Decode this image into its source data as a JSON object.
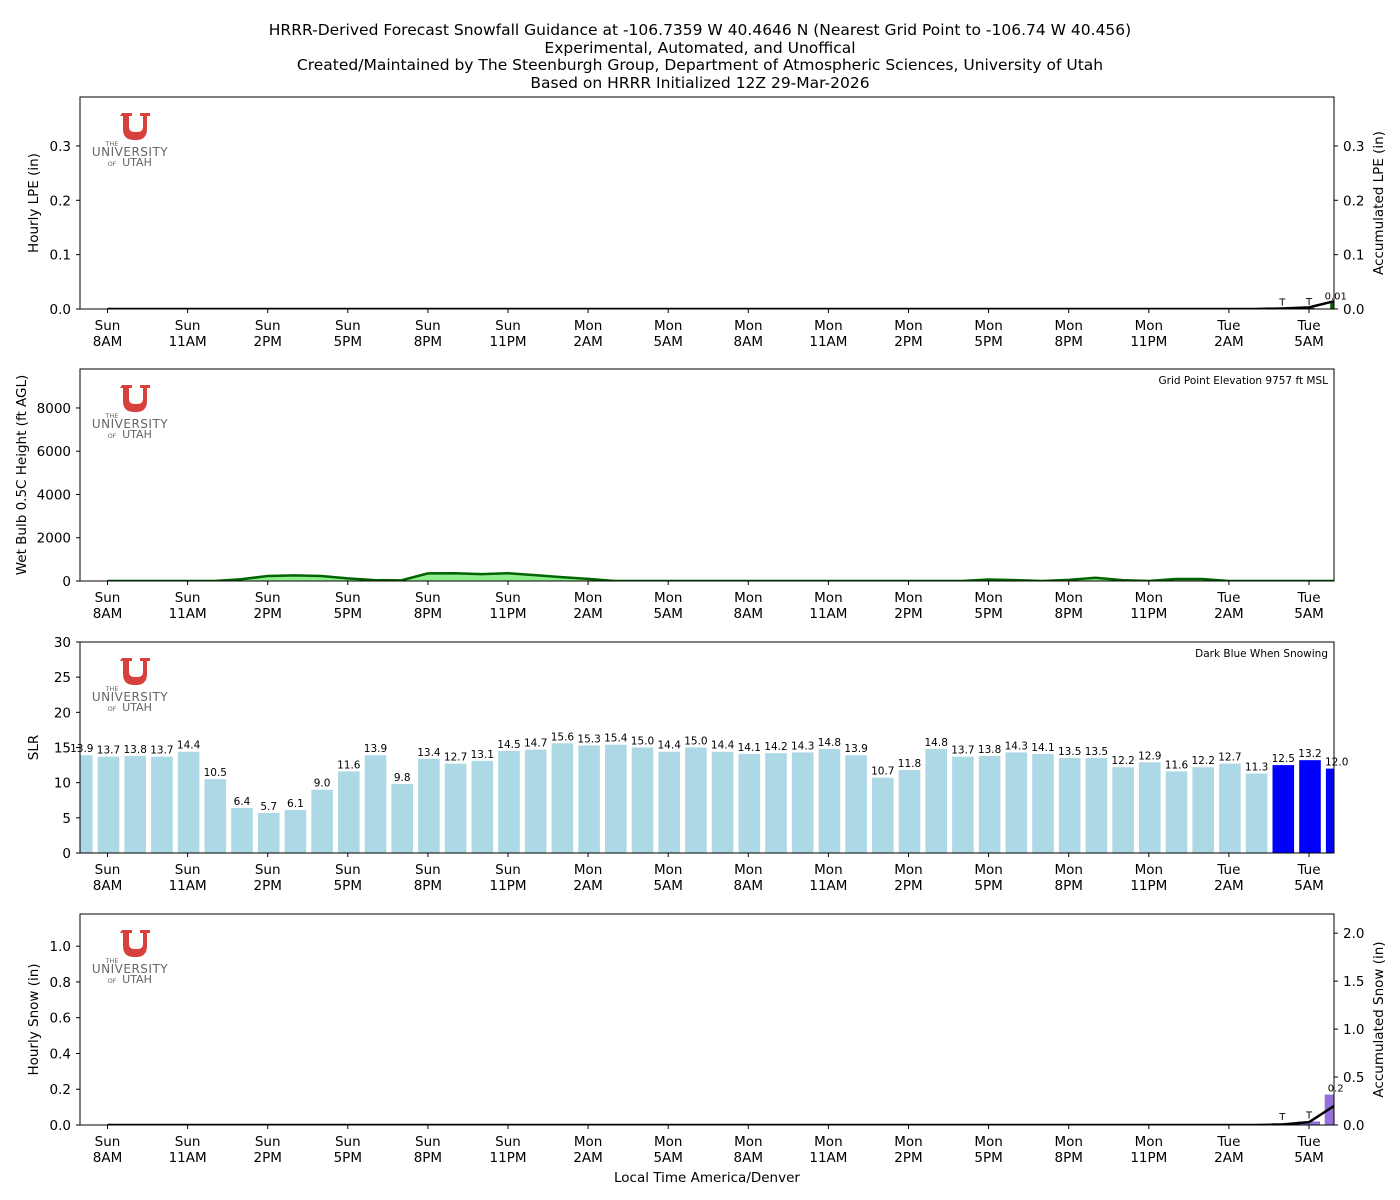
{
  "titles": {
    "line1": "HRRR-Derived Forecast Snowfall Guidance at -106.7359 W 40.4646 N (Nearest Grid Point to -106.74 W 40.456)",
    "line2": "Experimental, Automated, and Unoffical",
    "line3": "Created/Maintained by The Steenburgh Group, Department of Atmospheric Sciences, University of Utah",
    "line4": "Based on HRRR Initialized 12Z 29-Mar-2026"
  },
  "logo": {
    "the": "THE",
    "university": "UNIVERSITY",
    "of": "OF",
    "utah": "UTAH"
  },
  "colors": {
    "utah_red": "#d6403d",
    "slr_light": "#add8e6",
    "slr_snow": "#0000ff",
    "lpe_bar": "#006400",
    "wb_fill": "#90ee90",
    "wb_line": "#006400",
    "snow_bar": "#9370db"
  },
  "x_tick_labels": [
    [
      "Sun",
      "8AM"
    ],
    [
      "Sun",
      "11AM"
    ],
    [
      "Sun",
      "2PM"
    ],
    [
      "Sun",
      "5PM"
    ],
    [
      "Sun",
      "8PM"
    ],
    [
      "Sun",
      "11PM"
    ],
    [
      "Mon",
      "2AM"
    ],
    [
      "Mon",
      "5AM"
    ],
    [
      "Mon",
      "8AM"
    ],
    [
      "Mon",
      "11AM"
    ],
    [
      "Mon",
      "2PM"
    ],
    [
      "Mon",
      "5PM"
    ],
    [
      "Mon",
      "8PM"
    ],
    [
      "Mon",
      "11PM"
    ],
    [
      "Tue",
      "2AM"
    ],
    [
      "Tue",
      "5AM"
    ]
  ],
  "xlabel": "Local Time America/Denver",
  "chart_data": [
    {
      "type": "bar",
      "name": "lpe",
      "ylabel_left": "Hourly LPE (in)",
      "ylabel_right": "Accumulated LPE (in)",
      "ylim": [
        0,
        0.39
      ],
      "yticks": [
        "0.0",
        "0.1",
        "0.2",
        "0.3"
      ],
      "accumulated_ylim": [
        0,
        0.39
      ],
      "accumulated_yticks": [
        "0.0",
        "0.1",
        "0.2",
        "0.3"
      ],
      "hourly_values": [
        0,
        0,
        0,
        0,
        0,
        0,
        0,
        0,
        0,
        0,
        0,
        0,
        0,
        0,
        0,
        0,
        0,
        0,
        0,
        0,
        0,
        0,
        0,
        0,
        0,
        0,
        0,
        0,
        0,
        0,
        0,
        0,
        0,
        0,
        0,
        0,
        0,
        0,
        0,
        0,
        0,
        0,
        0,
        0,
        0.001,
        0.002,
        0.012
      ],
      "accumulated_values": [
        0,
        0,
        0,
        0,
        0,
        0,
        0,
        0,
        0,
        0,
        0,
        0,
        0,
        0,
        0,
        0,
        0,
        0,
        0,
        0,
        0,
        0,
        0,
        0,
        0,
        0,
        0,
        0,
        0,
        0,
        0,
        0,
        0,
        0,
        0,
        0,
        0,
        0,
        0,
        0,
        0,
        0,
        0,
        0,
        0.001,
        0.003,
        0.015
      ],
      "annotations": [
        {
          "index": 44,
          "label": "T"
        },
        {
          "index": 45,
          "label": "T"
        },
        {
          "index": 46,
          "label": "0.01"
        }
      ]
    },
    {
      "type": "area",
      "name": "wetbulb",
      "ylabel": "Wet Bulb 0.5C Height (ft AGL)",
      "ylim": [
        0,
        9800
      ],
      "yticks": [
        "0",
        "2000",
        "4000",
        "6000",
        "8000"
      ],
      "note": "Grid Point Elevation 9757 ft MSL",
      "values": [
        0,
        0,
        0,
        0,
        0,
        80,
        230,
        260,
        230,
        120,
        40,
        30,
        350,
        360,
        320,
        360,
        270,
        180,
        100,
        0,
        0,
        0,
        0,
        0,
        0,
        0,
        0,
        0,
        0,
        0,
        0,
        0,
        0,
        70,
        40,
        0,
        50,
        150,
        40,
        0,
        90,
        90,
        0,
        0,
        0,
        0,
        0,
        0,
        0,
        0,
        0
      ]
    },
    {
      "type": "bar",
      "name": "slr",
      "ylabel": "SLR",
      "ylim": [
        0,
        30
      ],
      "yticks": [
        "0",
        "5",
        "10",
        "15",
        "20",
        "25",
        "30"
      ],
      "note": "Dark Blue When Snowing",
      "values": [
        13.9,
        13.7,
        13.8,
        13.7,
        14.4,
        10.5,
        6.4,
        5.7,
        6.1,
        9.0,
        11.6,
        13.9,
        9.8,
        13.4,
        12.7,
        13.1,
        14.5,
        14.7,
        15.6,
        15.3,
        15.4,
        15.0,
        14.4,
        15.0,
        14.4,
        14.1,
        14.2,
        14.3,
        14.8,
        13.9,
        10.7,
        11.8,
        14.8,
        13.7,
        13.8,
        14.3,
        14.1,
        13.5,
        13.5,
        12.2,
        12.9,
        11.6,
        12.2,
        12.7,
        11.3,
        12.5,
        13.2,
        12.0
      ],
      "labels": [
        "13.9",
        "13.7",
        "13.8",
        "13.7",
        "14.4",
        "10.5",
        "6.4",
        "5.7",
        "6.1",
        "9.0",
        "11.6",
        "13.9",
        "9.8",
        "13.4",
        "12.7",
        "13.1",
        "14.5",
        "14.7",
        "15.6",
        "15.3",
        "15.4",
        "15.0",
        "14.4",
        "15.0",
        "14.4",
        "14.1",
        "14.2",
        "14.3",
        "14.8",
        "13.9",
        "10.7",
        "11.8",
        "14.8",
        "13.7",
        "13.8",
        "14.3",
        "14.1",
        "13.5",
        "13.5",
        "12.2",
        "12.9",
        "11.6",
        "12.2",
        "12.7",
        "11.3",
        "12.5",
        "13.2",
        "12.0"
      ],
      "snowing_from_index": 45
    },
    {
      "type": "bar",
      "name": "snow",
      "ylabel_left": "Hourly Snow (in)",
      "ylabel_right": "Accumulated Snow (in)",
      "ylim": [
        0,
        1.18
      ],
      "yticks": [
        "0.0",
        "0.2",
        "0.4",
        "0.6",
        "0.8",
        "1.0"
      ],
      "accumulated_ylim": [
        0,
        2.2
      ],
      "accumulated_yticks": [
        "0.0",
        "0.5",
        "1.0",
        "1.5",
        "2.0"
      ],
      "hourly_values": [
        0,
        0,
        0,
        0,
        0,
        0,
        0,
        0,
        0,
        0,
        0,
        0,
        0,
        0,
        0,
        0,
        0,
        0,
        0,
        0,
        0,
        0,
        0,
        0,
        0,
        0,
        0,
        0,
        0,
        0,
        0,
        0,
        0,
        0,
        0,
        0,
        0,
        0,
        0,
        0,
        0,
        0,
        0,
        0,
        0.01,
        0.02,
        0.17
      ],
      "accumulated_values": [
        0,
        0,
        0,
        0,
        0,
        0,
        0,
        0,
        0,
        0,
        0,
        0,
        0,
        0,
        0,
        0,
        0,
        0,
        0,
        0,
        0,
        0,
        0,
        0,
        0,
        0,
        0,
        0,
        0,
        0,
        0,
        0,
        0,
        0,
        0,
        0,
        0,
        0,
        0,
        0,
        0,
        0,
        0,
        0,
        0.005,
        0.03,
        0.21
      ],
      "annotations": [
        {
          "index": 44,
          "label": "T"
        },
        {
          "index": 45,
          "label": "T"
        },
        {
          "index": 46,
          "label": "0.2"
        }
      ]
    }
  ]
}
